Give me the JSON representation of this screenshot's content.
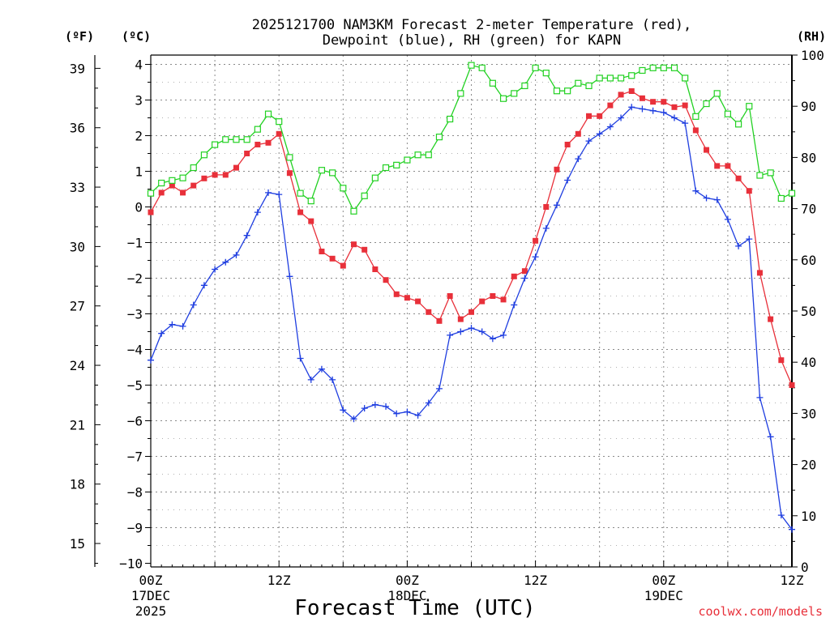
{
  "chart_data": {
    "type": "line",
    "title_line1": "2025121700 NAM3KM Forecast 2-meter Temperature (red),",
    "title_line2": "Dewpoint (blue), RH (green) for KAPN",
    "xlabel": "Forecast Time (UTC)",
    "credit": "coolwx.com/models",
    "unit_f": "(ºF)",
    "unit_c": "(ºC)",
    "unit_rh": "(RH)",
    "grid": true,
    "x_hours_range": [
      0,
      60
    ],
    "ylim_c": [
      -10,
      4.2
    ],
    "ylim_rh": [
      0,
      100
    ],
    "x_ticks": [
      {
        "hour": 0,
        "line1": "00Z",
        "line2": "17DEC",
        "line3": "2025"
      },
      {
        "hour": 12,
        "line1": "12Z",
        "line2": "",
        "line3": ""
      },
      {
        "hour": 24,
        "line1": "00Z",
        "line2": "18DEC",
        "line3": ""
      },
      {
        "hour": 36,
        "line1": "12Z",
        "line2": "",
        "line3": ""
      },
      {
        "hour": 48,
        "line1": "00Z",
        "line2": "19DEC",
        "line3": ""
      },
      {
        "hour": 60,
        "line1": "12Z",
        "line2": "",
        "line3": ""
      }
    ],
    "y_ticks_c": [
      4,
      3,
      2,
      1,
      0,
      -1,
      -2,
      -3,
      -4,
      -5,
      -6,
      -7,
      -8,
      -9,
      -10
    ],
    "y_ticks_f": [
      39,
      36,
      33,
      30,
      27,
      24,
      21,
      18,
      15
    ],
    "y_ticks_rh": [
      100,
      90,
      80,
      70,
      60,
      50,
      40,
      30,
      20,
      10,
      0
    ],
    "colors": {
      "temperature": "#e8303a",
      "dewpoint": "#1f3ee0",
      "rh": "#22d122"
    },
    "hours": [
      0,
      1,
      2,
      3,
      4,
      5,
      6,
      7,
      8,
      9,
      10,
      11,
      12,
      13,
      14,
      15,
      16,
      17,
      18,
      19,
      20,
      21,
      22,
      23,
      24,
      25,
      26,
      27,
      28,
      29,
      30,
      31,
      32,
      33,
      34,
      35,
      36,
      37,
      38,
      39,
      40,
      41,
      42,
      43,
      44,
      45,
      46,
      47,
      48,
      49,
      50,
      51,
      52,
      53,
      54,
      55,
      56,
      57,
      58,
      59,
      60
    ],
    "series": [
      {
        "name": "Temperature",
        "unit": "C",
        "color": "#e8303a",
        "marker": "filled-square",
        "values": [
          -0.15,
          0.4,
          0.6,
          0.4,
          0.6,
          0.8,
          0.9,
          0.9,
          1.1,
          1.5,
          1.75,
          1.8,
          2.05,
          0.95,
          -0.15,
          -0.4,
          -1.25,
          -1.45,
          -1.65,
          -1.05,
          -1.2,
          -1.75,
          -2.05,
          -2.45,
          -2.55,
          -2.65,
          -2.95,
          -3.2,
          -2.5,
          -3.15,
          -2.95,
          -2.65,
          -2.5,
          -2.6,
          -1.95,
          -1.8,
          -0.95,
          0,
          1.05,
          1.75,
          2.05,
          2.55,
          2.55,
          2.85,
          3.15,
          3.25,
          3.05,
          2.95,
          2.95,
          2.8,
          2.85,
          2.15,
          1.6,
          1.15,
          1.15,
          0.8,
          0.45,
          -1.85,
          -3.15,
          -4.3,
          -5.0
        ]
      },
      {
        "name": "Dewpoint",
        "unit": "C",
        "color": "#1f3ee0",
        "marker": "plus",
        "values": [
          -4.3,
          -3.55,
          -3.3,
          -3.35,
          -2.75,
          -2.2,
          -1.75,
          -1.55,
          -1.35,
          -0.8,
          -0.15,
          0.4,
          0.35,
          -1.95,
          -4.25,
          -4.85,
          -4.55,
          -4.85,
          -5.7,
          -5.95,
          -5.65,
          -5.55,
          -5.6,
          -5.8,
          -5.75,
          -5.85,
          -5.5,
          -5.1,
          -3.6,
          -3.5,
          -3.4,
          -3.5,
          -3.7,
          -3.6,
          -2.75,
          -2.0,
          -1.4,
          -0.6,
          0.05,
          0.75,
          1.35,
          1.85,
          2.05,
          2.25,
          2.5,
          2.8,
          2.75,
          2.7,
          2.65,
          2.5,
          2.35,
          0.45,
          0.25,
          0.2,
          -0.35,
          -1.1,
          -0.9,
          -5.35,
          -6.45,
          -8.65,
          -9.05
        ]
      },
      {
        "name": "RH",
        "unit": "%",
        "color": "#22d122",
        "marker": "open-square",
        "values": [
          73,
          75,
          75.5,
          76,
          78,
          80.5,
          82.5,
          83.5,
          83.5,
          83.5,
          85.5,
          88.5,
          87,
          80,
          73,
          71.5,
          77.5,
          77,
          74,
          69.5,
          72.5,
          76,
          78,
          78.5,
          79.5,
          80.5,
          80.5,
          84,
          87.5,
          92.5,
          98,
          97.5,
          94.5,
          91.5,
          92.5,
          94,
          97.5,
          96.5,
          93,
          93,
          94.5,
          94,
          95.5,
          95.5,
          95.5,
          96,
          97,
          97.5,
          97.5,
          97.5,
          95.5,
          88,
          90.5,
          92.5,
          88.5,
          86.5,
          90,
          76.5,
          77,
          72,
          73
        ]
      }
    ]
  }
}
